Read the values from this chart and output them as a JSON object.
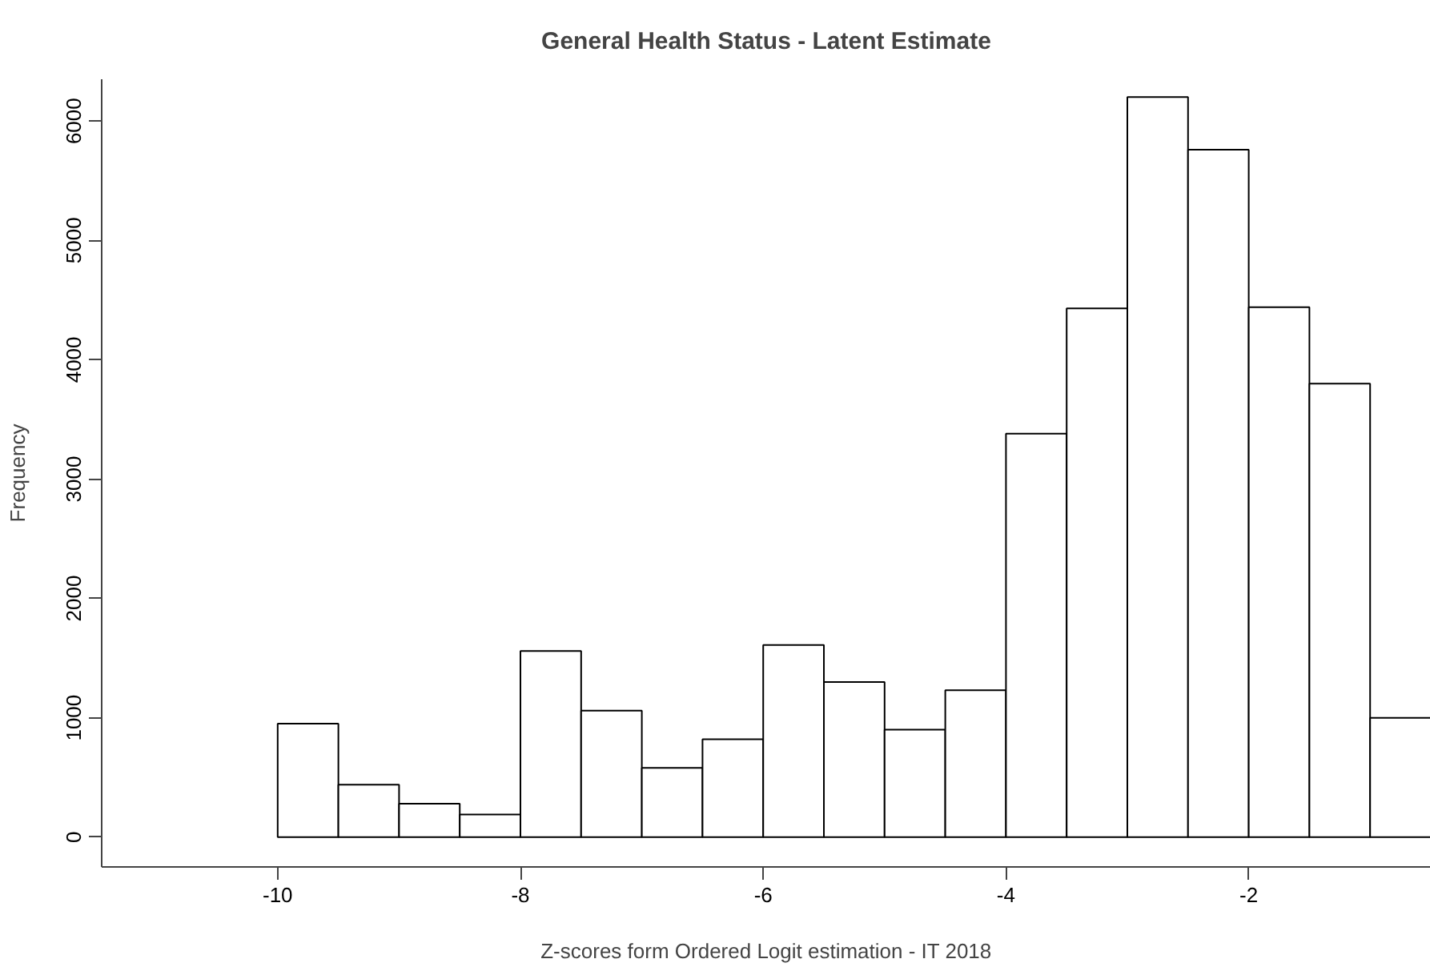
{
  "chart_data": {
    "type": "histogram",
    "title": "General Health Status - Latent Estimate",
    "xlabel": "Z-scores form Ordered Logit estimation - IT 2018",
    "ylabel": "Frequency",
    "bins": [
      -10,
      -9.5,
      -9,
      -8.5,
      -8,
      -7.5,
      -7,
      -6.5,
      -6,
      -5.5,
      -5,
      -4.5,
      -4,
      -3.5,
      -3,
      -2.5,
      -2,
      -1.5,
      -1,
      -0.5
    ],
    "values": [
      950,
      440,
      280,
      190,
      1560,
      1060,
      580,
      820,
      1610,
      1300,
      900,
      1230,
      3380,
      4430,
      6200,
      5760,
      4440,
      3800,
      1000
    ],
    "color": "#ffffff",
    "xlim": [
      -11.45,
      -0.5
    ],
    "ylim": [
      -250,
      6350
    ],
    "xticks": [
      -10,
      -8,
      -6,
      -4,
      -2
    ],
    "yticks": [
      0,
      1000,
      2000,
      3000,
      4000,
      5000,
      6000
    ],
    "grid": false
  }
}
